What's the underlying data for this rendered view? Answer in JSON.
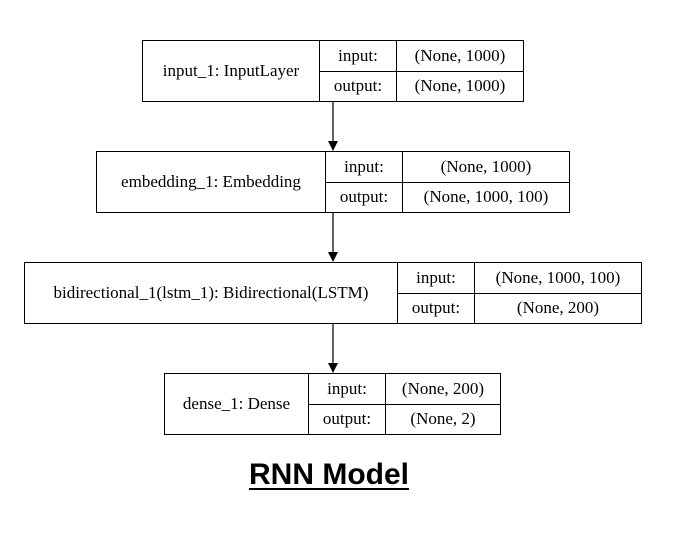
{
  "layers": [
    {
      "name": "input_1: InputLayer",
      "input_label": "input:",
      "input_shape": "(None, 1000)",
      "output_label": "output:",
      "output_shape": "(None, 1000)"
    },
    {
      "name": "embedding_1: Embedding",
      "input_label": "input:",
      "input_shape": "(None, 1000)",
      "output_label": "output:",
      "output_shape": "(None, 1000, 100)"
    },
    {
      "name": "bidirectional_1(lstm_1): Bidirectional(LSTM)",
      "input_label": "input:",
      "input_shape": "(None, 1000, 100)",
      "output_label": "output:",
      "output_shape": "(None, 200)"
    },
    {
      "name": "dense_1: Dense",
      "input_label": "input:",
      "input_shape": "(None, 200)",
      "output_label": "output:",
      "output_shape": "(None, 2)"
    }
  ],
  "title": "RNN Model",
  "colors": {
    "line": "#000000",
    "background": "#ffffff"
  }
}
